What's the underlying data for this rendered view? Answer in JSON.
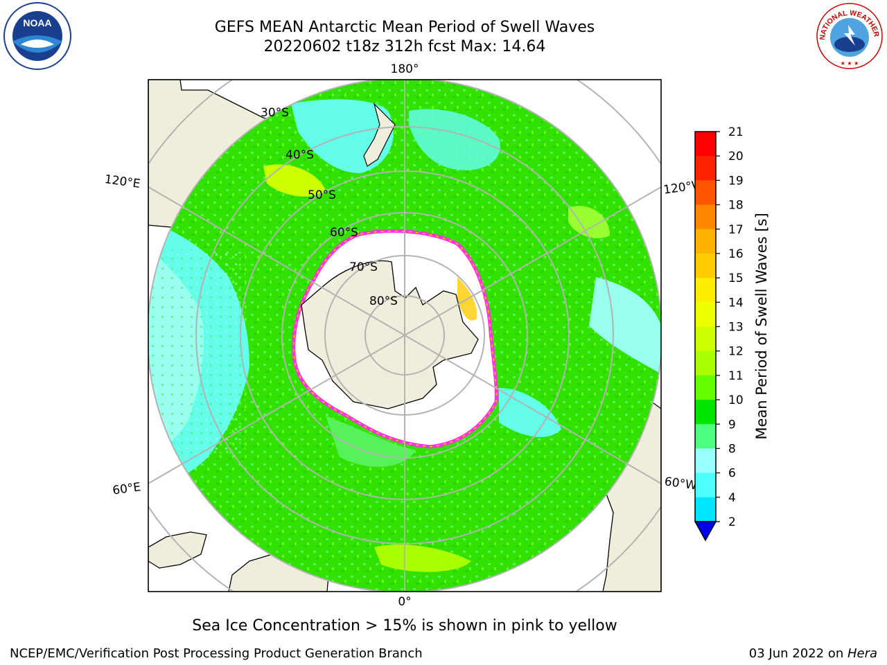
{
  "title": {
    "line1": "GEFS MEAN Antarctic Mean Period of Swell Waves",
    "line2": "20220602 t18z 312h fcst   Max: 14.64"
  },
  "map": {
    "lon_labels": {
      "top": "180°",
      "upper_left": "120°E",
      "upper_right": "120°W",
      "lower_left": "60°E",
      "lower_right": "60°W",
      "bottom": "0°"
    },
    "lat_labels": [
      "30°S",
      "40°S",
      "50°S",
      "60°S",
      "70°S",
      "80°S"
    ],
    "colors": {
      "land": "#efeddc",
      "ocean_main": "#33e100",
      "ocean_light": "#55f25a",
      "ocean_cyan": "#63fde9",
      "ocean_pale": "#99ffee",
      "ice": "#ffffff",
      "ice_edge": "#ff33dd",
      "grid": "#b3b3b3"
    }
  },
  "colorbar": {
    "label": "Mean Period of Swell Waves [s]",
    "ticks": [
      "2",
      "4",
      "6",
      "8",
      "9",
      "10",
      "11",
      "12",
      "13",
      "14",
      "15",
      "16",
      "17",
      "18",
      "19",
      "20",
      "21"
    ],
    "colors": [
      "#0033ff",
      "#0080ff",
      "#00e6ff",
      "#4dffff",
      "#99ffff",
      "#4dff80",
      "#00e600",
      "#66ff00",
      "#aaff00",
      "#ccff00",
      "#eeff00",
      "#ffee00",
      "#ffcc00",
      "#ffb300",
      "#ff8800",
      "#ff5500",
      "#ff2200",
      "#ff0000"
    ],
    "extend_color": "#0000ee"
  },
  "note": "Sea Ice Concentration > 15% is shown in pink to yellow",
  "footer": {
    "left": "NCEP/EMC/Verification Post Processing Product Generation Branch",
    "date": "03 Jun 2022 on ",
    "host": "Hera"
  },
  "logos": {
    "left": {
      "text": "NOAA",
      "icon": "noaa-logo"
    },
    "right": {
      "text": "NATIONAL WEATHER SERVICE",
      "icon": "nws-logo"
    }
  }
}
